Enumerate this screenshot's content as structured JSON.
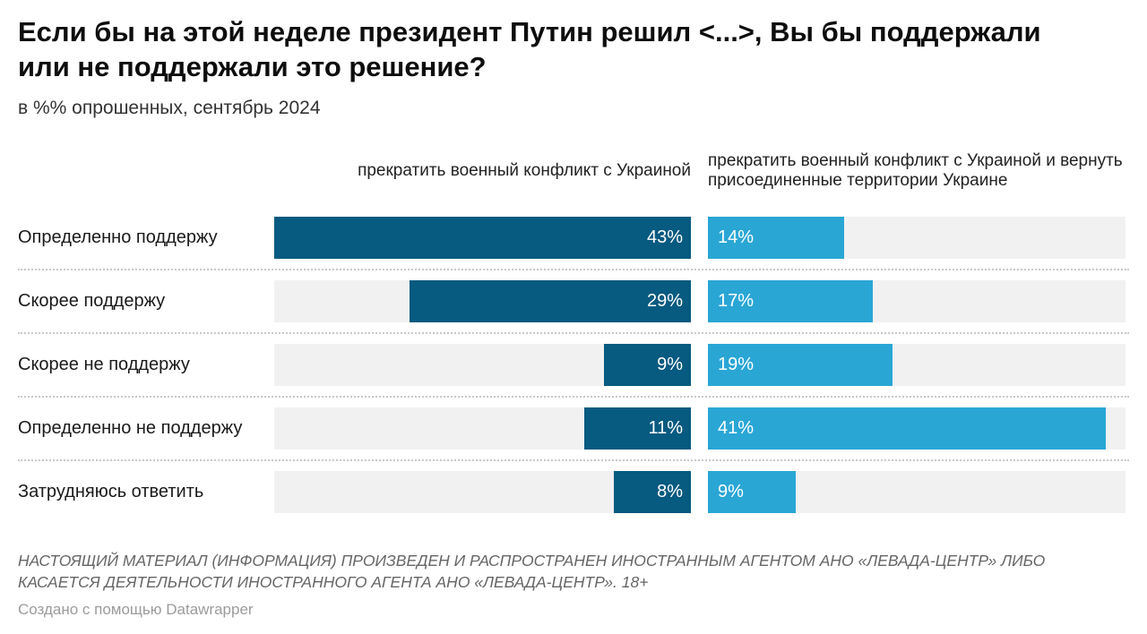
{
  "title": "Если бы на этой неделе президент Путин решил <...>, Вы бы поддержали или не поддержали это решение?",
  "subtitle": "в %% опрошенных, сентябрь 2024",
  "chart_data": {
    "type": "bar",
    "orientation": "horizontal",
    "categories": [
      "Определенно поддержу",
      "Скорее поддержу",
      "Скорее не поддержу",
      "Определенно не поддержу",
      "Затрудняюсь ответить"
    ],
    "series": [
      {
        "name": "прекратить военный конфликт с Украиной",
        "values": [
          43,
          29,
          9,
          11,
          8
        ],
        "color": "#075a80",
        "bar_alignment": "right"
      },
      {
        "name": "прекратить военный конфликт с Украиной и вернуть присоединенные территории Украине",
        "values": [
          14,
          17,
          19,
          41,
          9
        ],
        "color": "#2aa6d5",
        "bar_alignment": "left"
      }
    ],
    "value_suffix": "%",
    "xmax": 43,
    "track_color": "#f1f1f1",
    "value_labels": "inside-bar",
    "grid": false,
    "legend_position": "column-headers"
  },
  "footer": {
    "disclaimer": "НАСТОЯЩИЙ МАТЕРИАЛ (ИНФОРМАЦИЯ) ПРОИЗВЕДЕН И РАСПРОСТРАНЕН ИНОСТРАННЫМ АГЕНТОМ АНО «ЛЕВАДА-ЦЕНТР» ЛИБО КАСАЕТСЯ ДЕЯТЕЛЬНОСТИ ИНОСТРАННОГО АГЕНТА АНО «ЛЕВАДА-ЦЕНТР». 18+",
    "credit": "Создано с помощью Datawrapper"
  }
}
